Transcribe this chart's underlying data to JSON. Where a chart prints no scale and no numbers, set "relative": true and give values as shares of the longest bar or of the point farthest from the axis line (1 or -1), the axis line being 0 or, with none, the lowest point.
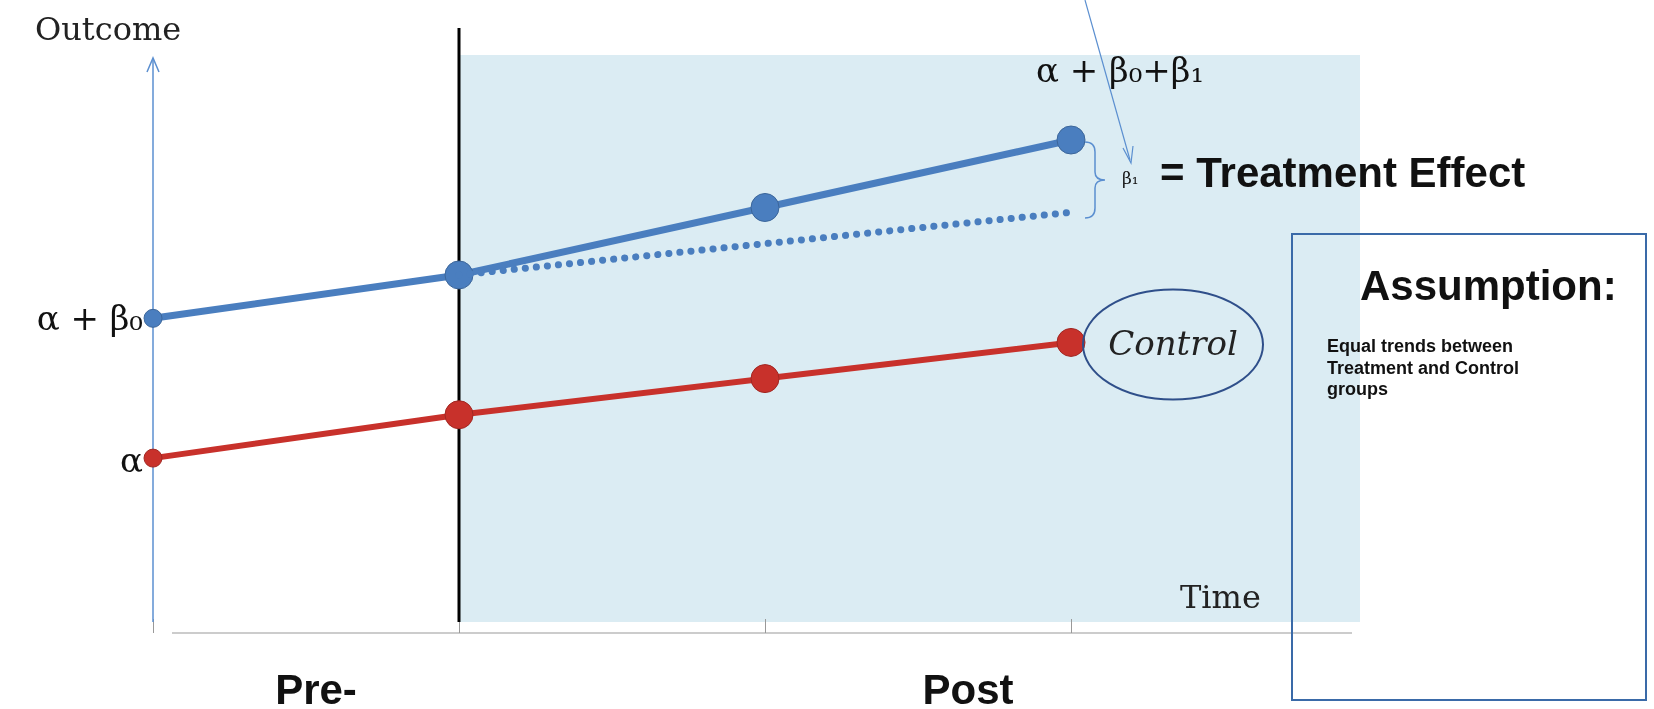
{
  "chart_data": {
    "type": "line",
    "relative": true,
    "ylabel": "Outcome",
    "xlabel": "Time",
    "categories": [
      null,
      null,
      null,
      null
    ],
    "series": [
      {
        "color": "#4a7ebf",
        "values": [
          0.63,
          0.72,
          0.86,
          1
        ],
        "line_style": "solid",
        "marker": "circle"
      },
      {
        "color": "#4a7ebf",
        "values": [
          null,
          0.72,
          0.785,
          0.85
        ],
        "line_style": "dotted",
        "marker": "none"
      },
      {
        "name": "Control",
        "color": "#c8312b",
        "values": [
          0.34,
          0.43,
          0.505,
          0.58
        ],
        "line_style": "solid",
        "marker": "circle"
      }
    ],
    "annotations": [
      "α + β₀",
      "α",
      "α + β₀+β₁",
      "β₁",
      "= Treatment Effect",
      "Assumption:",
      "Equal trends between Treatment and Control groups",
      "Pre-",
      "Post"
    ]
  }
}
